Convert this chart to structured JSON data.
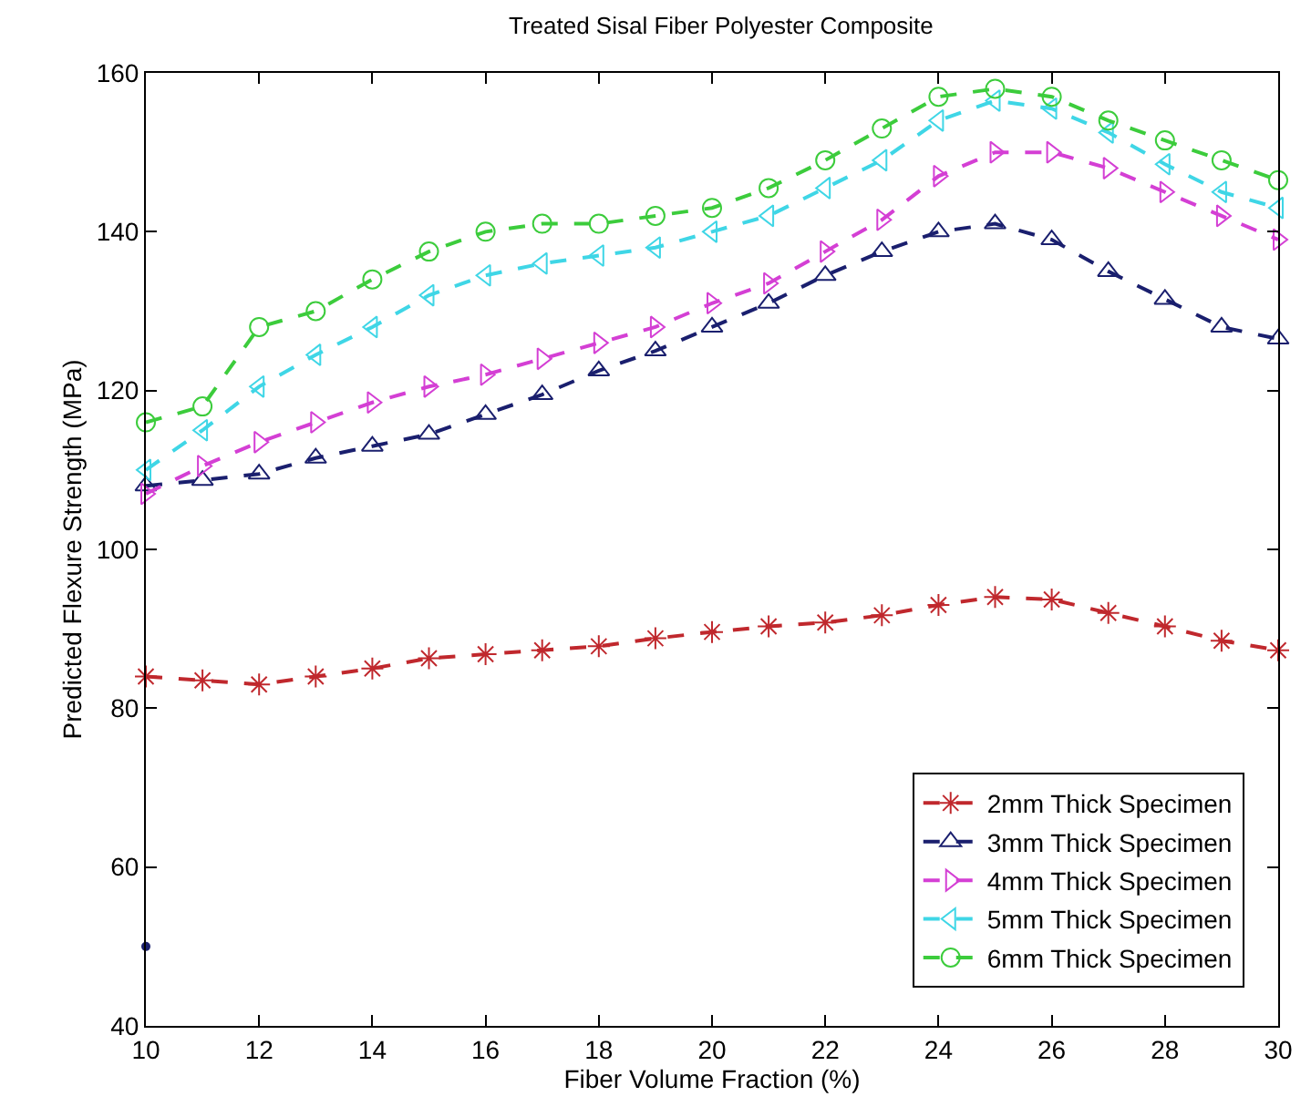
{
  "chart_data": {
    "type": "line",
    "title": "Treated Sisal Fiber Polyester Composite",
    "xlabel": "Fiber Volume Fraction (%)",
    "ylabel": "Predicted Flexure Strength (MPa)",
    "x": [
      10,
      11,
      12,
      13,
      14,
      15,
      16,
      17,
      18,
      19,
      20,
      21,
      22,
      23,
      24,
      25,
      26,
      27,
      28,
      29,
      30
    ],
    "xlim": [
      10,
      30
    ],
    "xticks": [
      10,
      12,
      14,
      16,
      18,
      20,
      22,
      24,
      26,
      28,
      30
    ],
    "ylim": [
      40,
      160
    ],
    "yticks": [
      40,
      60,
      80,
      100,
      120,
      140,
      160
    ],
    "legend": "bottom right",
    "line_style": "dashed",
    "series": [
      {
        "name": "2mm Thick Specimen",
        "color": "#c0282d",
        "marker": "cross",
        "values": [
          84,
          83.5,
          83,
          84,
          85,
          86.3,
          86.8,
          87.3,
          87.8,
          88.8,
          89.6,
          90.3,
          90.8,
          91.7,
          93,
          94,
          93.7,
          92,
          90.3,
          88.5,
          87.3
        ]
      },
      {
        "name": "3mm Thick Specimen",
        "color": "#1a1f6e",
        "marker": "triangle",
        "values": [
          108,
          108.7,
          109.5,
          111.5,
          113,
          114.5,
          117,
          119.5,
          122.5,
          125,
          128,
          131,
          134.5,
          137.5,
          140,
          141,
          139,
          135,
          131.5,
          128,
          126.5
        ]
      },
      {
        "name": "4mm Thick Specimen",
        "color": "#d43fd4",
        "marker": "triangle-right",
        "values": [
          107,
          110.5,
          113.5,
          116,
          118.5,
          120.5,
          122,
          124,
          126,
          128,
          131,
          133.5,
          137.5,
          141.5,
          147,
          150,
          150,
          148,
          145,
          142,
          139
        ]
      },
      {
        "name": "5mm Thick Specimen",
        "color": "#3fd6e6",
        "marker": "triangle-left",
        "values": [
          110,
          115,
          120.5,
          124.5,
          128,
          132,
          134.5,
          136,
          137,
          138,
          140,
          142,
          145.5,
          149,
          154,
          156.5,
          155.5,
          152.5,
          148.5,
          145,
          143
        ]
      },
      {
        "name": "6mm Thick Specimen",
        "color": "#3ccc3c",
        "marker": "circle",
        "values": [
          116,
          118,
          128,
          130,
          134,
          137.5,
          140,
          141,
          141,
          142,
          143,
          145.5,
          149,
          153,
          157,
          158,
          157,
          154,
          151.5,
          149,
          146.5
        ]
      },
      {
        "type": "scatter",
        "color": "#1a1f6e",
        "marker": "circle",
        "x": [
          10
        ],
        "values": [
          50
        ]
      }
    ]
  }
}
